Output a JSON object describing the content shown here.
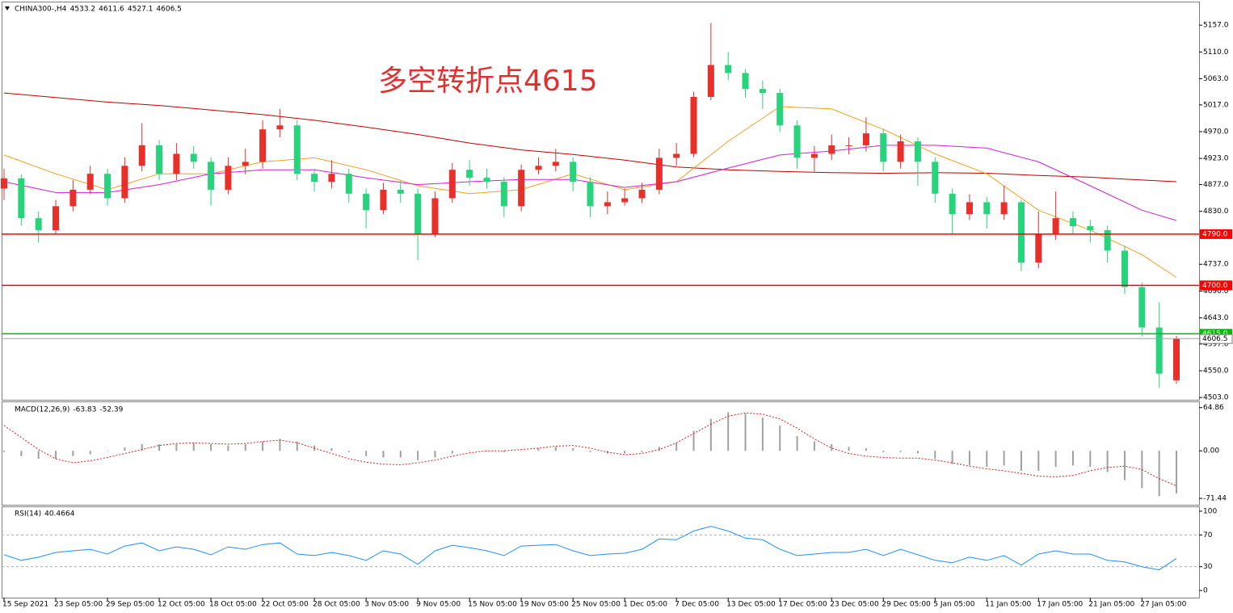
{
  "chart_data": [
    {
      "type": "candlestick",
      "title": "CHINA300-,H4",
      "annotation": "多空转折点4615",
      "categories": [
        "15 Sep 2021",
        null,
        null,
        "23 Sep 05:00",
        null,
        null,
        "29 Sep 05:00",
        null,
        null,
        "12 Oct 05:00",
        null,
        null,
        "18 Oct 05:00",
        null,
        null,
        "22 Oct 05:00",
        null,
        null,
        "28 Oct 05:00",
        null,
        null,
        "3 Nov 05:00",
        null,
        null,
        "9 Nov 05:00",
        null,
        null,
        "15 Nov 05:00",
        null,
        null,
        "19 Nov 05:00",
        null,
        null,
        "25 Nov 05:00",
        null,
        null,
        "1 Dec 05:00",
        null,
        null,
        "7 Dec 05:00",
        null,
        null,
        "13 Dec 05:00",
        null,
        null,
        "17 Dec 05:00",
        null,
        null,
        "23 Dec 05:00",
        null,
        null,
        "29 Dec 05:00",
        null,
        null,
        "5 Jan 05:00",
        null,
        null,
        "11 Jan 05:00",
        null,
        null,
        "17 Jan 05:00",
        null,
        null,
        "21 Jan 05:00",
        null,
        null,
        "27 Jan 05:00",
        null,
        null
      ],
      "open": [
        4870,
        4888,
        4818,
        4797,
        4839,
        4868,
        4896,
        4853,
        4910,
        4946,
        4896,
        4931,
        4917,
        4868,
        4910,
        4917,
        4974,
        4981,
        4896,
        4882,
        4896,
        4861,
        4832,
        4868,
        4861,
        4790,
        4853,
        4903,
        4889,
        4882,
        4839,
        4903,
        4910,
        4917,
        4882,
        4839,
        4846,
        4853,
        4868,
        4924,
        4931,
        5031,
        5087,
        5073,
        5045,
        5038,
        4981,
        4924,
        4931,
        4946,
        4946,
        4967,
        4917,
        4953,
        4917,
        4861,
        4825,
        4846,
        4825,
        4846,
        4740,
        4790,
        4818,
        4804,
        4797,
        4761,
        4697,
        4626,
        4533.2
      ],
      "high": [
        4905,
        4895,
        4830,
        4850,
        4885,
        4910,
        4905,
        4925,
        4985,
        4955,
        4950,
        4945,
        4925,
        4925,
        4940,
        4990,
        5010,
        4990,
        4905,
        4920,
        4905,
        4870,
        4880,
        4885,
        4870,
        4865,
        4915,
        4920,
        4905,
        4890,
        4912,
        4925,
        4940,
        4925,
        4890,
        4865,
        4870,
        4880,
        4940,
        4950,
        5040,
        5161,
        5110,
        5080,
        5060,
        5045,
        4990,
        4945,
        4965,
        4960,
        4995,
        4975,
        4965,
        4960,
        4925,
        4870,
        4860,
        4855,
        4875,
        4850,
        4830,
        4865,
        4830,
        4815,
        4805,
        4770,
        4705,
        4670,
        4611.6
      ],
      "low": [
        4850,
        4805,
        4775,
        4790,
        4830,
        4860,
        4840,
        4845,
        4900,
        4885,
        4885,
        4905,
        4840,
        4860,
        4895,
        4905,
        4960,
        4885,
        4865,
        4870,
        4845,
        4800,
        4825,
        4845,
        4744,
        4785,
        4845,
        4875,
        4870,
        4820,
        4830,
        4895,
        4900,
        4865,
        4820,
        4825,
        4840,
        4845,
        4860,
        4910,
        4925,
        5025,
        5060,
        5030,
        5010,
        4970,
        4905,
        4900,
        4920,
        4930,
        4935,
        4900,
        4905,
        4875,
        4845,
        4790,
        4815,
        4800,
        4815,
        4725,
        4730,
        4780,
        4790,
        4775,
        4740,
        4685,
        4610,
        4520,
        4527.1
      ],
      "close": [
        4888,
        4818,
        4797,
        4839,
        4868,
        4896,
        4853,
        4910,
        4946,
        4896,
        4931,
        4917,
        4868,
        4910,
        4917,
        4974,
        4981,
        4896,
        4882,
        4896,
        4861,
        4832,
        4868,
        4861,
        4790,
        4853,
        4903,
        4889,
        4882,
        4839,
        4903,
        4910,
        4917,
        4882,
        4839,
        4846,
        4853,
        4868,
        4924,
        4931,
        5031,
        5087,
        5073,
        5045,
        5038,
        4981,
        4924,
        4931,
        4946,
        4946,
        4967,
        4917,
        4953,
        4917,
        4861,
        4825,
        4846,
        4825,
        4846,
        4740,
        4790,
        4818,
        4804,
        4797,
        4761,
        4697,
        4626,
        4545,
        4606.5
      ],
      "up_color": "#e8302a",
      "down_color": "#27d47c",
      "lines": [
        {
          "color": "#c00000",
          "x": [
            0,
            3,
            6,
            9,
            12,
            15,
            18,
            21,
            24,
            27,
            30,
            33,
            36,
            39,
            42,
            45,
            48,
            51,
            54,
            57,
            60,
            63,
            66,
            68
          ],
          "values": [
            5038,
            5030,
            5022,
            5016,
            5008,
            5000,
            4990,
            4978,
            4965,
            4950,
            4938,
            4930,
            4920,
            4908,
            4903,
            4900,
            4898,
            4897,
            4898,
            4897,
            4893,
            4890,
            4885,
            4882
          ]
        },
        {
          "color": "#f0a020",
          "x": [
            0,
            3,
            6,
            9,
            12,
            15,
            18,
            21,
            24,
            27,
            30,
            33,
            36,
            39,
            42,
            45,
            48,
            51,
            54,
            57,
            60,
            63,
            66,
            68
          ],
          "values": [
            4929,
            4896,
            4868,
            4896,
            4896,
            4917,
            4924,
            4903,
            4875,
            4861,
            4868,
            4896,
            4868,
            4882,
            4953,
            5014,
            5010,
            4974,
            4931,
            4896,
            4832,
            4797,
            4754,
            4714
          ]
        },
        {
          "color": "#d020d0",
          "x": [
            0,
            3,
            6,
            9,
            12,
            15,
            18,
            21,
            24,
            27,
            30,
            33,
            36,
            39,
            42,
            45,
            48,
            51,
            54,
            57,
            60,
            63,
            66,
            68
          ],
          "values": [
            4882,
            4863,
            4863,
            4877,
            4896,
            4903,
            4903,
            4889,
            4877,
            4882,
            4886,
            4886,
            4872,
            4882,
            4906,
            4929,
            4936,
            4946,
            4946,
            4941,
            4917,
            4875,
            4832,
            4814
          ]
        }
      ],
      "hlines": [
        {
          "value": 4790,
          "label": "4790.0",
          "color": "#ff0000"
        },
        {
          "value": 4700,
          "label": "4700.0",
          "color": "#ff0000"
        },
        {
          "value": 4615,
          "label": "4615.0",
          "color": "#00c000"
        }
      ],
      "ylim": [
        4499,
        5197
      ],
      "yticks": [
        {
          "value": 5157,
          "label": "5157.0"
        },
        {
          "value": 5110,
          "label": "5110.0"
        },
        {
          "value": 5063,
          "label": "5063.0"
        },
        {
          "value": 5017,
          "label": "5017.0"
        },
        {
          "value": 4970,
          "label": "4970.0"
        },
        {
          "value": 4923,
          "label": "4923.0"
        },
        {
          "value": 4877,
          "label": "4877.0"
        },
        {
          "value": 4830,
          "label": "4830.0"
        },
        {
          "value": 4737,
          "label": "4737.0"
        },
        {
          "value": 4690,
          "label": "4690.0"
        },
        {
          "value": 4643,
          "label": "4643.0"
        },
        {
          "value": 4597,
          "label": "4597.0"
        },
        {
          "value": 4550,
          "label": "4550.0"
        },
        {
          "value": 4503,
          "label": "4503.0"
        }
      ]
    },
    {
      "type": "macd",
      "title": "MACD(12,26,9)",
      "histogram": [
        -2,
        -8,
        -12,
        -12,
        -8,
        -5,
        0,
        5,
        10,
        10,
        10,
        12,
        10,
        8,
        10,
        14,
        18,
        14,
        8,
        4,
        -2,
        -8,
        -10,
        -10,
        -14,
        -10,
        -4,
        0,
        0,
        -2,
        0,
        4,
        6,
        4,
        -2,
        -4,
        -4,
        -2,
        6,
        12,
        30,
        48,
        58,
        56,
        50,
        38,
        22,
        14,
        10,
        6,
        4,
        -2,
        -2,
        -4,
        -12,
        -20,
        -22,
        -24,
        -22,
        -30,
        -30,
        -24,
        -22,
        -24,
        -32,
        -44,
        -56,
        -68,
        -63.83
      ],
      "signal": [
        38,
        20,
        2,
        -12,
        -18,
        -15,
        -10,
        -4,
        2,
        8,
        11,
        12,
        11,
        10,
        11,
        14,
        16,
        12,
        4,
        -4,
        -12,
        -17,
        -20,
        -21,
        -18,
        -14,
        -8,
        -3,
        0,
        0,
        2,
        4,
        7,
        8,
        4,
        -2,
        -6,
        -4,
        2,
        12,
        26,
        40,
        52,
        57,
        55,
        48,
        34,
        18,
        4,
        -4,
        -8,
        -10,
        -11,
        -11,
        -14,
        -18,
        -23,
        -27,
        -30,
        -34,
        -38,
        -39,
        -37,
        -30,
        -25,
        -23,
        -28,
        -42,
        -52.39
      ],
      "histogram_color": "#a0a0a0",
      "signal_color": "#e02020",
      "ylim": [
        -81,
        73
      ],
      "yticks": [
        64.86,
        {
          "value": 0,
          "label": "0.00"
        },
        -71.44
      ]
    },
    {
      "type": "rsi",
      "title": "RSI(14)",
      "values": [
        45,
        38,
        42,
        48,
        50,
        52,
        46,
        56,
        60,
        50,
        55,
        52,
        45,
        55,
        52,
        58,
        60,
        46,
        44,
        48,
        44,
        38,
        50,
        46,
        33,
        50,
        57,
        54,
        50,
        44,
        56,
        57,
        58,
        50,
        44,
        46,
        47,
        52,
        65,
        64,
        75,
        81,
        75,
        66,
        64,
        52,
        44,
        46,
        48,
        48,
        52,
        44,
        52,
        45,
        38,
        35,
        42,
        38,
        44,
        32,
        46,
        50,
        46,
        46,
        38,
        36,
        30,
        26,
        40.4664
      ],
      "color": "#1e90ff",
      "ylim": [
        -9,
        106
      ],
      "yticks": [
        100,
        70,
        30,
        0
      ],
      "levels": [
        70,
        30
      ]
    }
  ]
}
